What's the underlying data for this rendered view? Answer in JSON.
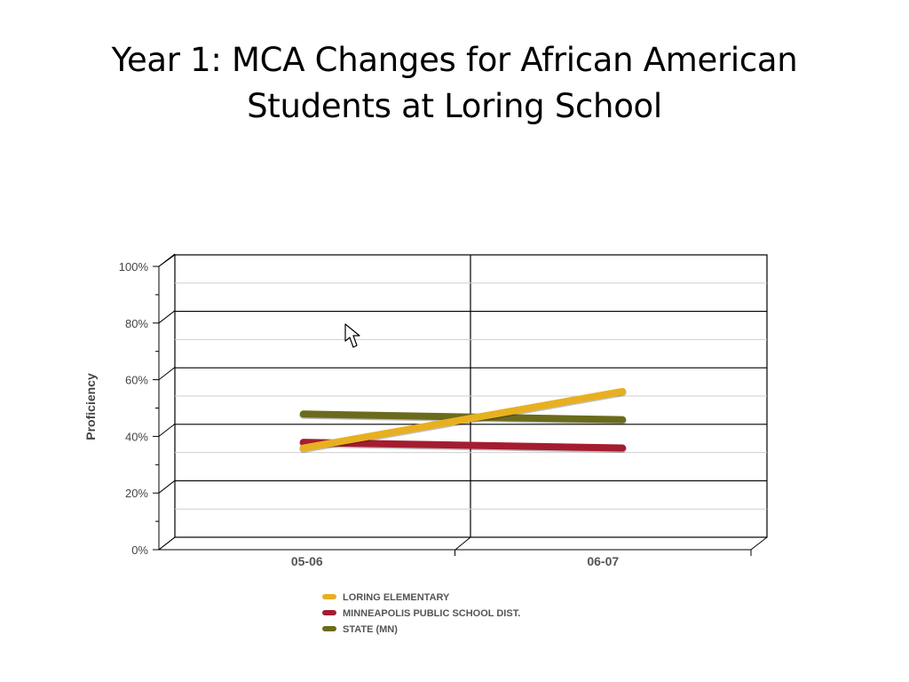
{
  "slide": {
    "title_line1": "Year 1: MCA Changes for African American",
    "title_line2": "Students at Loring School"
  },
  "chart_data": {
    "type": "line",
    "title": "",
    "xlabel": "",
    "ylabel": "Proficiency",
    "categories": [
      "05-06",
      "06-07"
    ],
    "ylim": [
      0,
      100
    ],
    "yticks": [
      "0%",
      "20%",
      "40%",
      "60%",
      "80%",
      "100%"
    ],
    "grid": true,
    "legend_position": "bottom",
    "series": [
      {
        "name": "LORING ELEMENTARY",
        "values": [
          35,
          55
        ],
        "color": "#E8B020"
      },
      {
        "name": "MINNEAPOLIS PUBLIC SCHOOL DIST.",
        "values": [
          37,
          35
        ],
        "color": "#A51C30"
      },
      {
        "name": "STATE (MN)",
        "values": [
          47,
          45
        ],
        "color": "#6B6B1E"
      }
    ]
  }
}
